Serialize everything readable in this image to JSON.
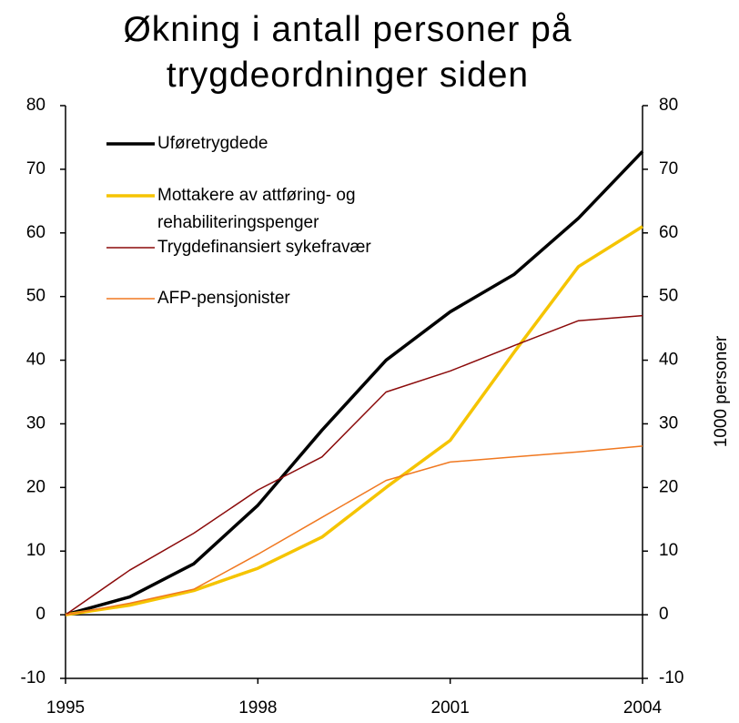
{
  "chart_data": {
    "type": "line",
    "title": "Økning i antall personer på trygdeordninger siden",
    "y2_label": "1000 personer",
    "x": [
      1995,
      1996,
      1997,
      1998,
      1999,
      2000,
      2001,
      2002,
      2003,
      2004
    ],
    "xlim": [
      1995,
      2004
    ],
    "xticks": [
      1995,
      1998,
      2001,
      2004
    ],
    "ylim": [
      -10,
      80
    ],
    "yticks": [
      -10,
      0,
      10,
      20,
      30,
      40,
      50,
      60,
      70,
      80
    ],
    "y2lim": [
      -10,
      80
    ],
    "y2ticks": [
      -10,
      0,
      10,
      20,
      30,
      40,
      50,
      60,
      70,
      80
    ],
    "series": [
      {
        "name": "Uføretrygdede",
        "color": "#000000",
        "values": [
          0,
          2.8,
          8,
          17.2,
          29,
          40,
          47.6,
          53.5,
          62.3,
          72.8
        ]
      },
      {
        "name": "Mottakere av attføring- og rehabiliteringspenger",
        "color": "#f5c400",
        "values": [
          0,
          1.5,
          3.8,
          7.3,
          12.2,
          20,
          27.4,
          41.3,
          54.7,
          61
        ]
      },
      {
        "name": "Trygdefinansiert sykefravær",
        "color": "#8b0a0a",
        "values": [
          0,
          7,
          12.8,
          19.6,
          24.8,
          35,
          38.3,
          42.3,
          46.2,
          47
        ]
      },
      {
        "name": "AFP-pensjonister",
        "color": "#f07820",
        "values": [
          0,
          1.8,
          4,
          9.5,
          15.3,
          21.1,
          24,
          24.8,
          25.6,
          26.5
        ]
      }
    ]
  }
}
